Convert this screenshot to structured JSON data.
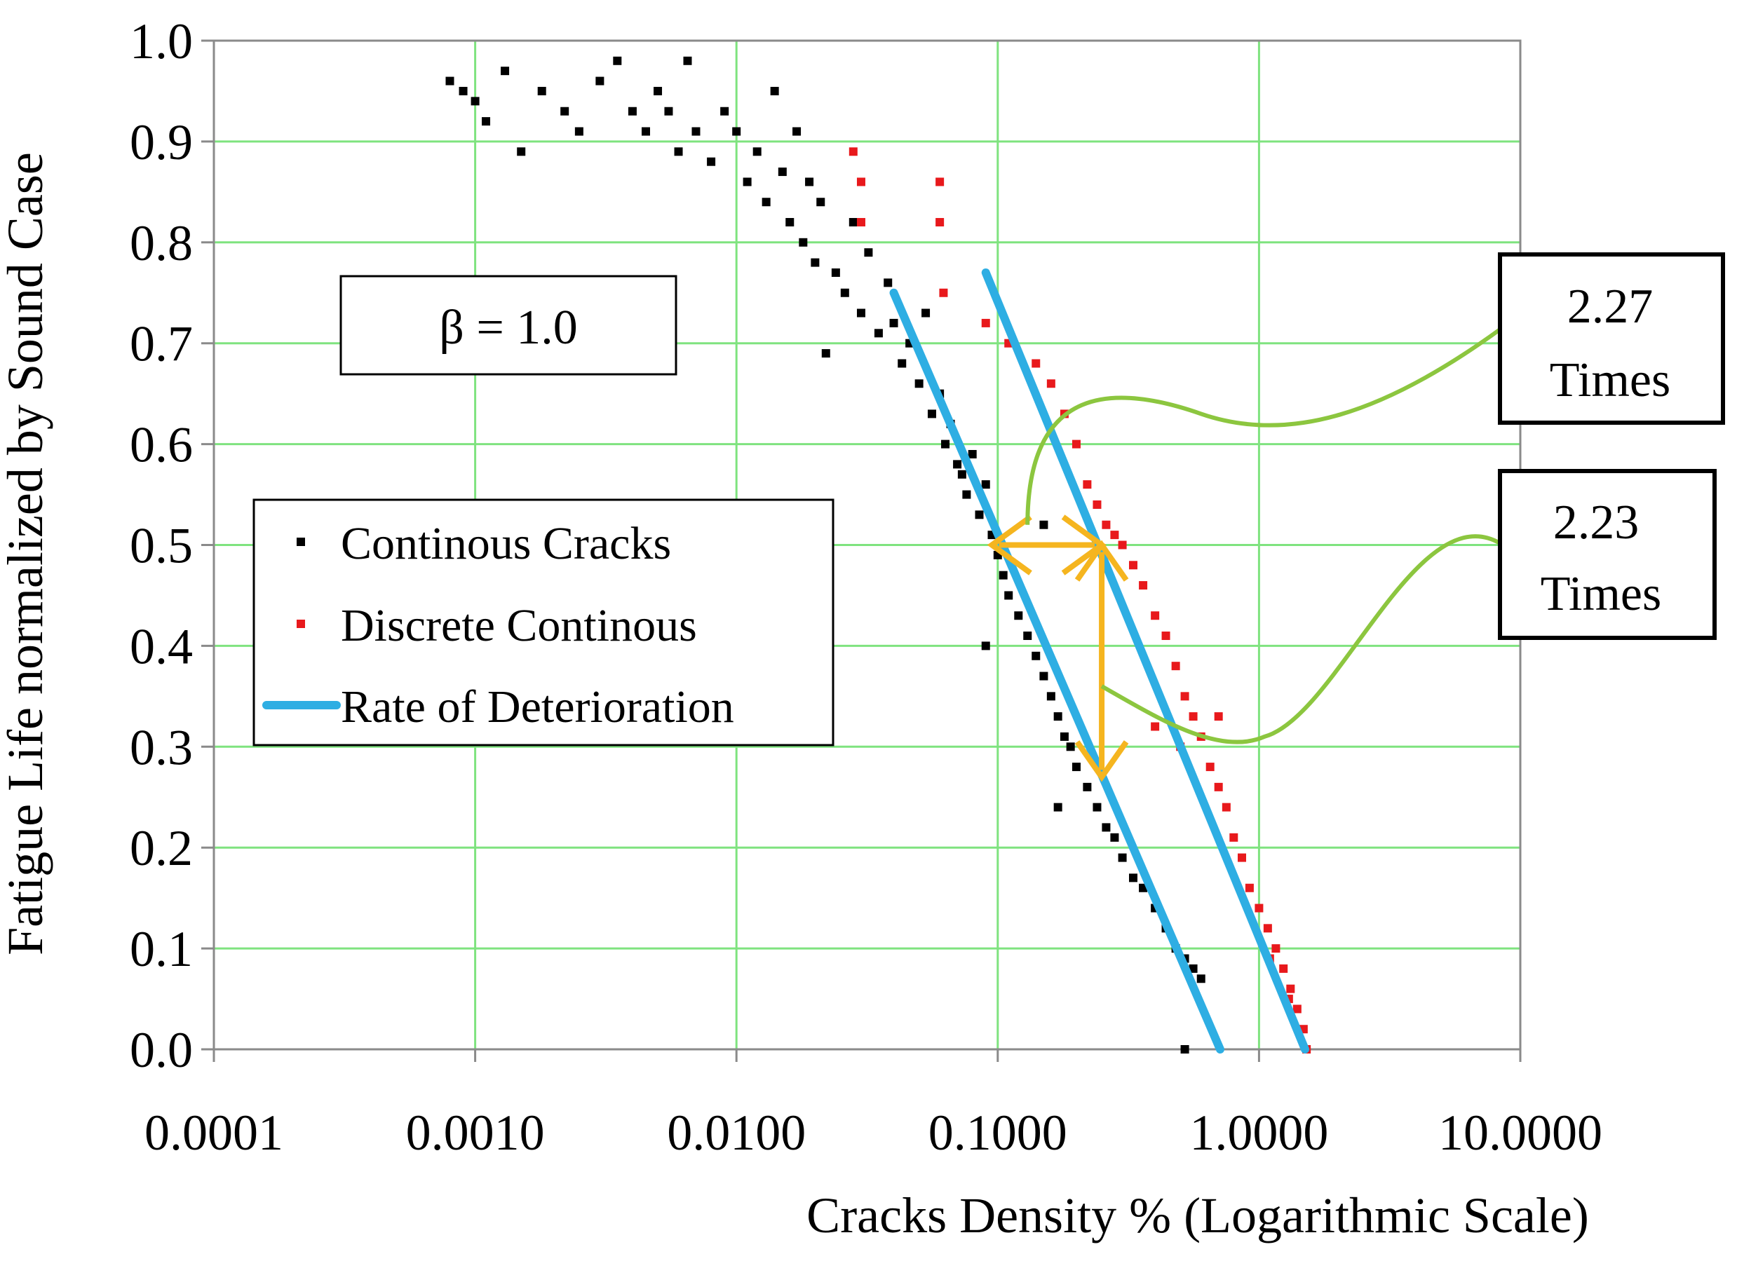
{
  "chart_data": {
    "type": "scatter",
    "title": "",
    "xlabel": "Cracks Density % (Logarithmic Scale)",
    "ylabel": "Fatigue Life normalized by Sound Case",
    "xscale": "log",
    "xlim": [
      0.0001,
      10
    ],
    "ylim": [
      0,
      1
    ],
    "grid": true,
    "x_tick_labels": [
      "0.0001",
      "0.0010",
      "0.0100",
      "0.1000",
      "1.0000",
      "10.0000"
    ],
    "x_tick_values": [
      0.0001,
      0.001,
      0.01,
      0.1,
      1,
      10
    ],
    "y_tick_labels": [
      "0.0",
      "0.1",
      "0.2",
      "0.3",
      "0.4",
      "0.5",
      "0.6",
      "0.7",
      "0.8",
      "0.9",
      "1.0"
    ],
    "y_tick_values": [
      0,
      0.1,
      0.2,
      0.3,
      0.4,
      0.5,
      0.6,
      0.7,
      0.8,
      0.9,
      1.0
    ],
    "parameter_label": "β = 1.0",
    "legend": {
      "position": "center-left",
      "entries": [
        {
          "label": "Continous Cracks",
          "color": "#000000",
          "marker": "square"
        },
        {
          "label": "Discrete Continous",
          "color": "#e8191c",
          "marker": "square"
        },
        {
          "label": "Rate of Deterioration",
          "color": "#2eaee3",
          "marker": "line"
        }
      ]
    },
    "series": [
      {
        "name": "Continous Cracks",
        "color": "#000000",
        "points": [
          [
            0.0008,
            0.96
          ],
          [
            0.0009,
            0.95
          ],
          [
            0.001,
            0.94
          ],
          [
            0.0011,
            0.92
          ],
          [
            0.0013,
            0.97
          ],
          [
            0.0015,
            0.89
          ],
          [
            0.0018,
            0.95
          ],
          [
            0.0022,
            0.93
          ],
          [
            0.0025,
            0.91
          ],
          [
            0.003,
            0.96
          ],
          [
            0.0035,
            0.98
          ],
          [
            0.004,
            0.93
          ],
          [
            0.0045,
            0.91
          ],
          [
            0.005,
            0.95
          ],
          [
            0.0055,
            0.93
          ],
          [
            0.006,
            0.89
          ],
          [
            0.0065,
            0.98
          ],
          [
            0.007,
            0.91
          ],
          [
            0.008,
            0.88
          ],
          [
            0.009,
            0.93
          ],
          [
            0.01,
            0.91
          ],
          [
            0.011,
            0.86
          ],
          [
            0.012,
            0.89
          ],
          [
            0.013,
            0.84
          ],
          [
            0.014,
            0.95
          ],
          [
            0.015,
            0.87
          ],
          [
            0.016,
            0.82
          ],
          [
            0.017,
            0.91
          ],
          [
            0.018,
            0.8
          ],
          [
            0.019,
            0.86
          ],
          [
            0.02,
            0.78
          ],
          [
            0.021,
            0.84
          ],
          [
            0.022,
            0.69
          ],
          [
            0.024,
            0.77
          ],
          [
            0.026,
            0.75
          ],
          [
            0.028,
            0.82
          ],
          [
            0.03,
            0.73
          ],
          [
            0.032,
            0.79
          ],
          [
            0.035,
            0.71
          ],
          [
            0.038,
            0.76
          ],
          [
            0.04,
            0.72
          ],
          [
            0.043,
            0.68
          ],
          [
            0.046,
            0.7
          ],
          [
            0.05,
            0.66
          ],
          [
            0.053,
            0.73
          ],
          [
            0.056,
            0.63
          ],
          [
            0.06,
            0.65
          ],
          [
            0.063,
            0.6
          ],
          [
            0.066,
            0.62
          ],
          [
            0.07,
            0.58
          ],
          [
            0.073,
            0.57
          ],
          [
            0.076,
            0.55
          ],
          [
            0.08,
            0.59
          ],
          [
            0.085,
            0.53
          ],
          [
            0.09,
            0.56
          ],
          [
            0.095,
            0.51
          ],
          [
            0.1,
            0.49
          ],
          [
            0.105,
            0.47
          ],
          [
            0.11,
            0.45
          ],
          [
            0.12,
            0.43
          ],
          [
            0.13,
            0.41
          ],
          [
            0.14,
            0.39
          ],
          [
            0.15,
            0.37
          ],
          [
            0.16,
            0.35
          ],
          [
            0.17,
            0.33
          ],
          [
            0.18,
            0.31
          ],
          [
            0.19,
            0.3
          ],
          [
            0.2,
            0.28
          ],
          [
            0.22,
            0.26
          ],
          [
            0.24,
            0.24
          ],
          [
            0.26,
            0.22
          ],
          [
            0.28,
            0.21
          ],
          [
            0.3,
            0.19
          ],
          [
            0.33,
            0.17
          ],
          [
            0.36,
            0.16
          ],
          [
            0.4,
            0.14
          ],
          [
            0.44,
            0.12
          ],
          [
            0.48,
            0.1
          ],
          [
            0.52,
            0.09
          ],
          [
            0.56,
            0.08
          ],
          [
            0.6,
            0.07
          ],
          [
            0.52,
            0.0
          ],
          [
            0.09,
            0.4
          ],
          [
            0.15,
            0.52
          ],
          [
            0.17,
            0.24
          ]
        ]
      },
      {
        "name": "Discrete Continous",
        "color": "#e8191c",
        "points": [
          [
            0.028,
            0.89
          ],
          [
            0.03,
            0.86
          ],
          [
            0.03,
            0.82
          ],
          [
            0.06,
            0.86
          ],
          [
            0.06,
            0.82
          ],
          [
            0.062,
            0.75
          ],
          [
            0.09,
            0.72
          ],
          [
            0.11,
            0.7
          ],
          [
            0.14,
            0.68
          ],
          [
            0.16,
            0.66
          ],
          [
            0.18,
            0.63
          ],
          [
            0.2,
            0.6
          ],
          [
            0.22,
            0.56
          ],
          [
            0.24,
            0.54
          ],
          [
            0.26,
            0.52
          ],
          [
            0.28,
            0.51
          ],
          [
            0.3,
            0.5
          ],
          [
            0.33,
            0.48
          ],
          [
            0.36,
            0.46
          ],
          [
            0.4,
            0.43
          ],
          [
            0.44,
            0.41
          ],
          [
            0.48,
            0.38
          ],
          [
            0.52,
            0.35
          ],
          [
            0.56,
            0.33
          ],
          [
            0.6,
            0.31
          ],
          [
            0.65,
            0.28
          ],
          [
            0.7,
            0.26
          ],
          [
            0.75,
            0.24
          ],
          [
            0.8,
            0.21
          ],
          [
            0.86,
            0.19
          ],
          [
            0.92,
            0.16
          ],
          [
            1.0,
            0.14
          ],
          [
            1.08,
            0.12
          ],
          [
            1.16,
            0.1
          ],
          [
            1.24,
            0.08
          ],
          [
            1.32,
            0.06
          ],
          [
            1.4,
            0.04
          ],
          [
            1.48,
            0.02
          ],
          [
            1.52,
            0.0
          ],
          [
            0.4,
            0.32
          ],
          [
            0.5,
            0.3
          ],
          [
            0.7,
            0.33
          ],
          [
            1.1,
            0.09
          ],
          [
            1.3,
            0.05
          ]
        ]
      }
    ],
    "lines": [
      {
        "name": "Rate of Deterioration",
        "color": "#2eaee3",
        "points": [
          [
            0.04,
            0.75
          ],
          [
            0.71,
            0.0
          ]
        ]
      },
      {
        "name": "Rate of Deterioration",
        "color": "#2eaee3",
        "points": [
          [
            0.09,
            0.77
          ],
          [
            1.5,
            0.0
          ]
        ]
      }
    ],
    "annotations": [
      {
        "text_line1": "2.27",
        "text_line2": "Times",
        "description": "horizontal ratio at y = 0.5"
      },
      {
        "text_line1": "2.23",
        "text_line2": "Times",
        "description": "vertical ratio at x ≈ 0.25"
      }
    ]
  }
}
